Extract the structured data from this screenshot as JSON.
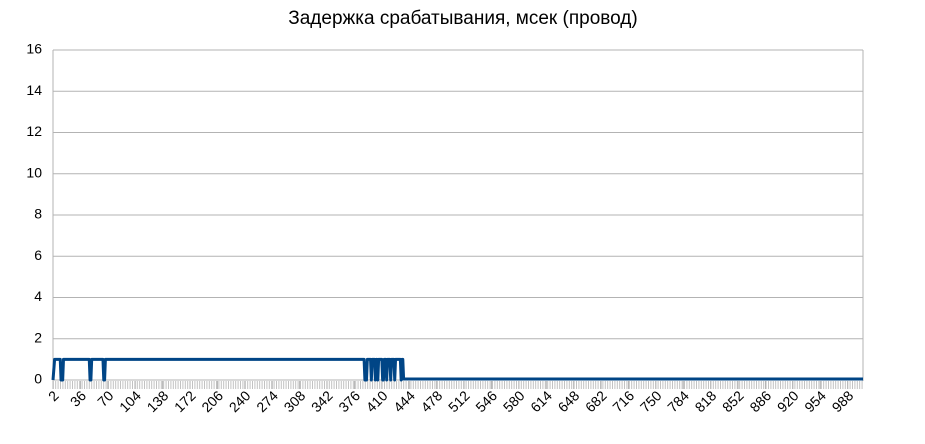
{
  "chart_data": {
    "type": "line",
    "title": "Задержка срабатывания, мсек (провод)",
    "x": [
      2,
      4,
      11,
      12,
      14,
      15,
      47,
      48,
      49,
      50,
      64,
      65,
      66,
      67,
      388,
      389,
      391,
      392,
      396,
      397,
      398,
      401,
      402,
      403,
      404,
      405,
      406,
      410,
      411,
      412,
      413,
      415,
      416,
      417,
      420,
      421,
      422,
      425,
      426,
      427,
      433,
      434,
      435,
      436,
      437,
      1007
    ],
    "series": [
      {
        "name": "Задержка",
        "color": "#004586",
        "values": [
          0,
          1,
          1,
          0,
          0,
          1,
          1,
          0,
          0,
          1,
          1,
          0,
          0,
          1,
          1,
          0,
          0,
          1,
          1,
          0,
          1,
          1,
          0,
          1,
          1,
          0,
          1,
          1,
          0,
          0,
          1,
          1,
          0,
          1,
          1,
          0,
          1,
          1,
          0,
          1,
          1,
          0,
          1,
          1,
          0.05,
          0.05
        ]
      }
    ],
    "xlim": [
      2,
      1007
    ],
    "xticks": [
      2,
      36,
      70,
      104,
      138,
      172,
      206,
      240,
      274,
      308,
      342,
      376,
      410,
      444,
      478,
      512,
      546,
      580,
      614,
      648,
      682,
      716,
      750,
      784,
      818,
      852,
      886,
      920,
      954,
      988
    ],
    "ylim": [
      0,
      16
    ],
    "yticks": [
      0,
      2,
      4,
      6,
      8,
      10,
      12,
      14,
      16
    ],
    "grid": true
  }
}
